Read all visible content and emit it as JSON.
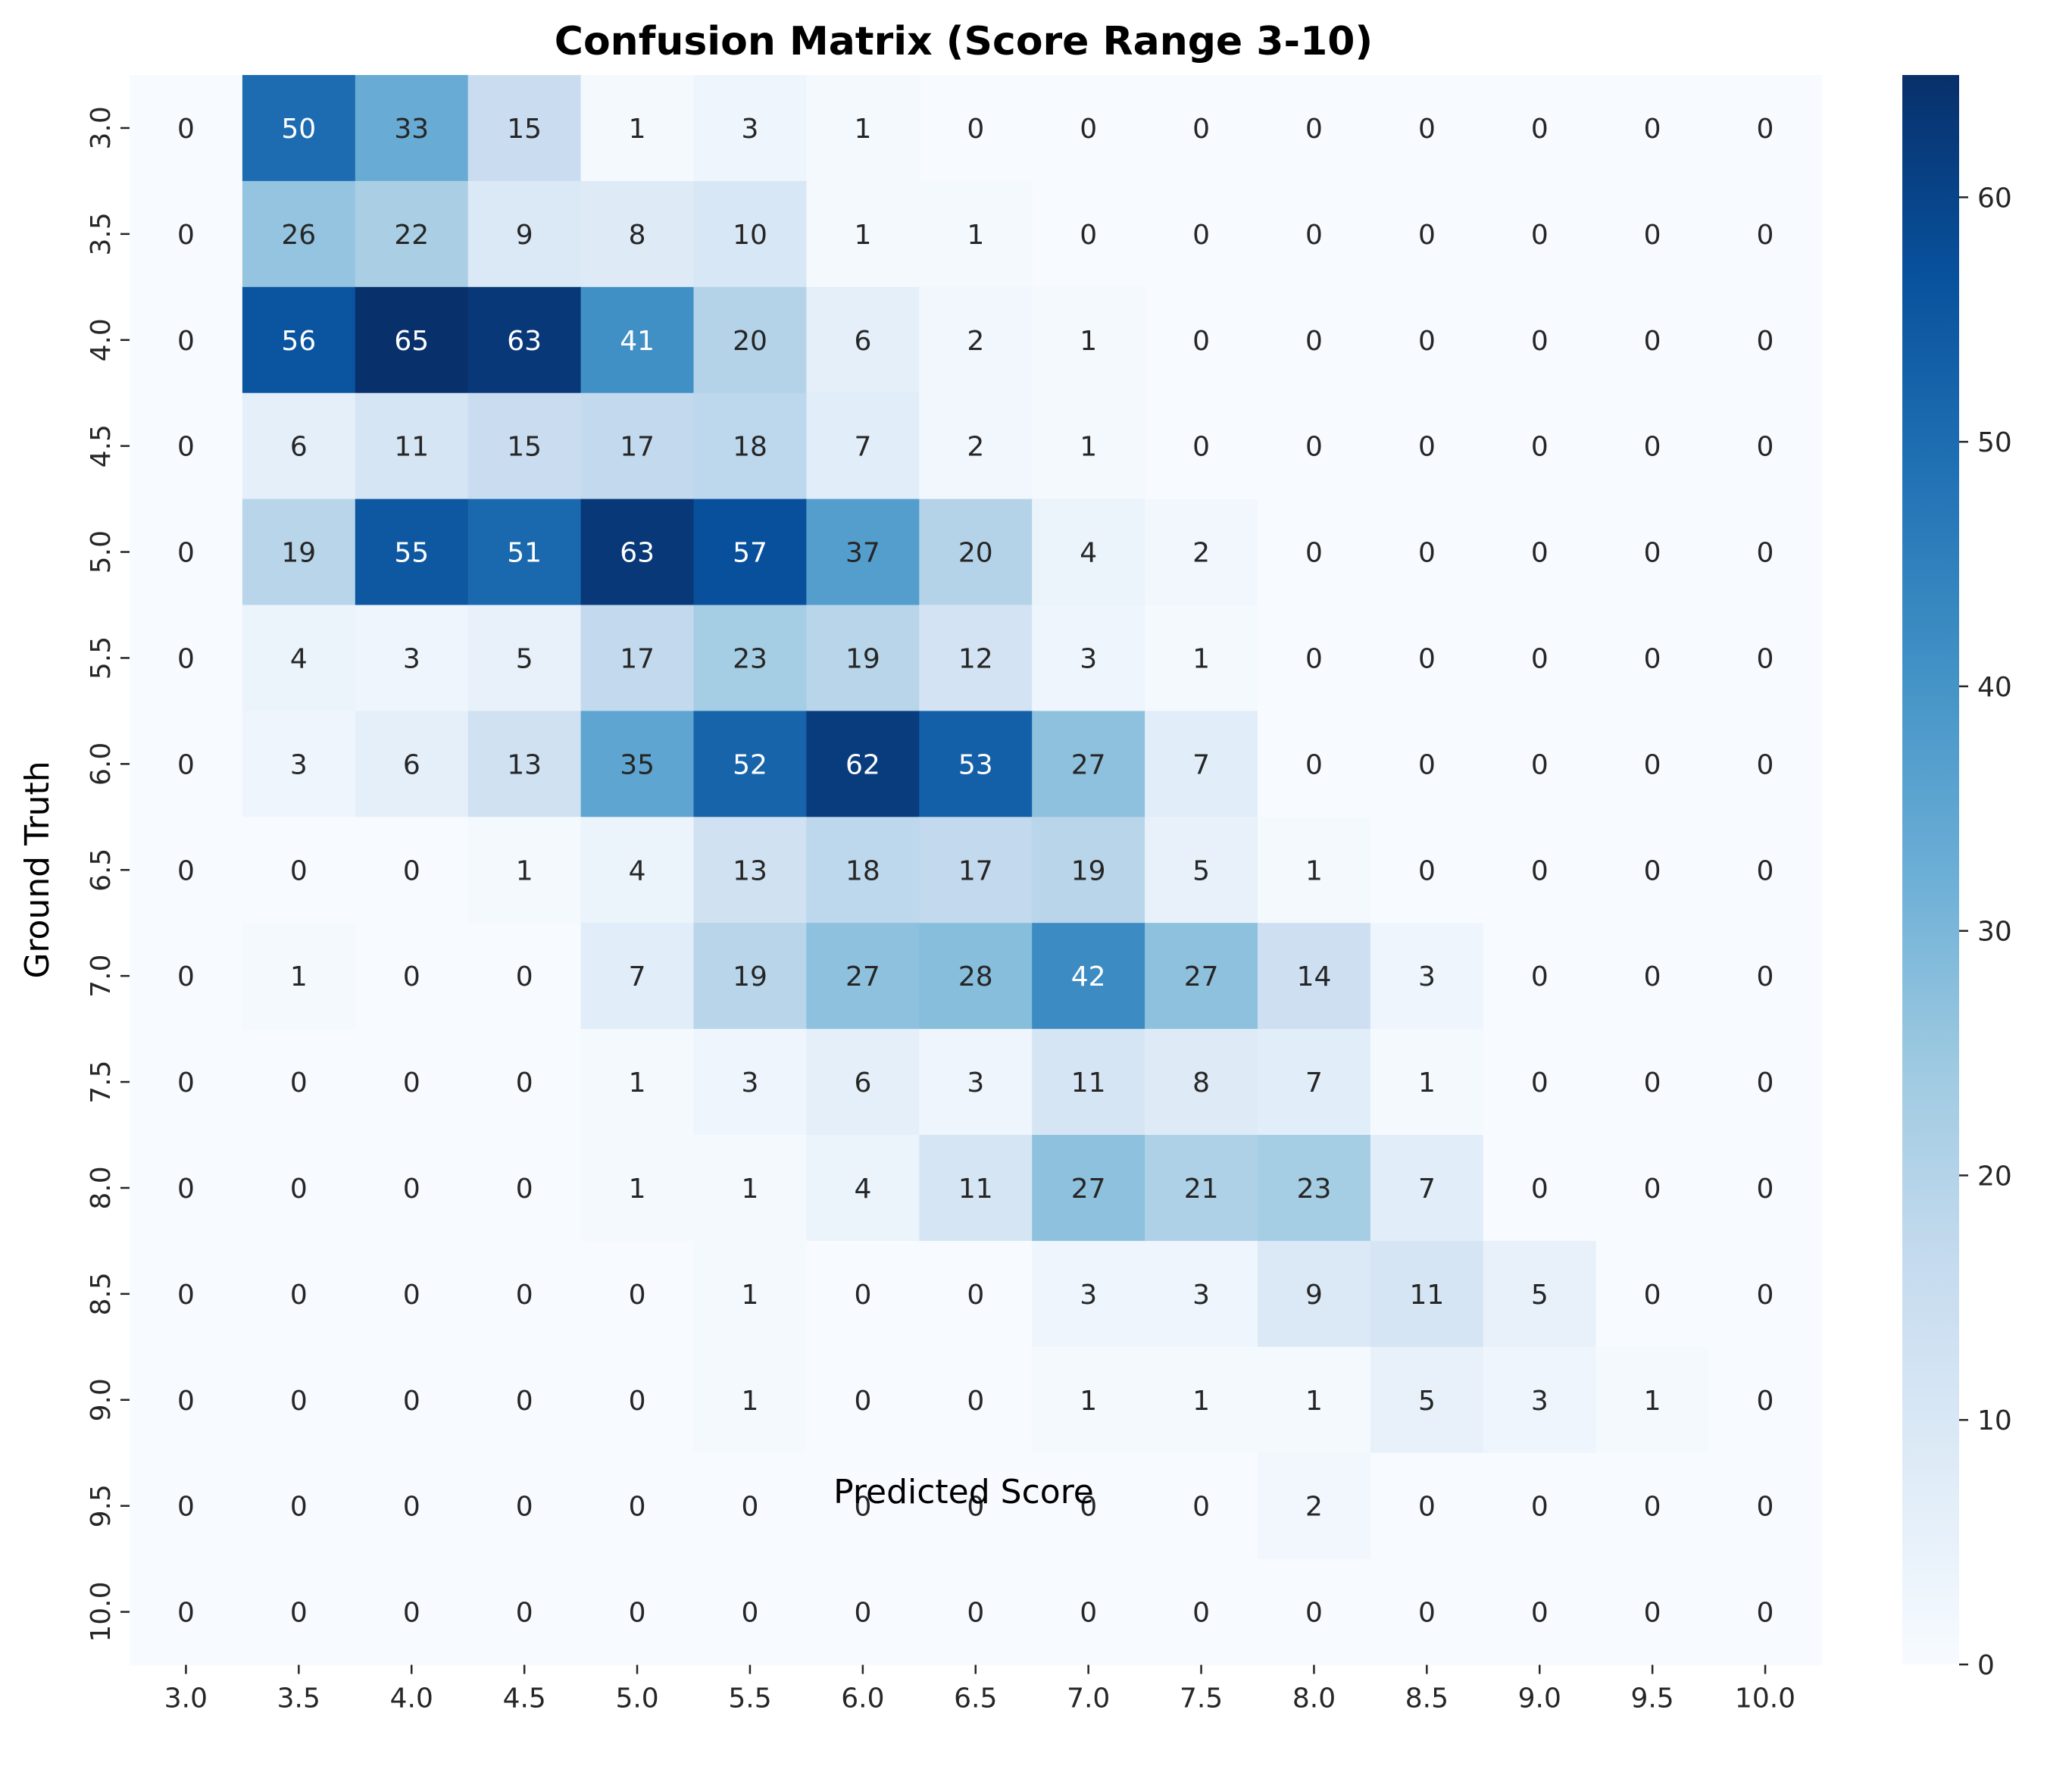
{
  "chart_data": {
    "type": "heatmap",
    "title": "Confusion Matrix (Score Range 3-10)",
    "xlabel": "Predicted Score",
    "ylabel": "Ground Truth",
    "x_categories": [
      "3.0",
      "3.5",
      "4.0",
      "4.5",
      "5.0",
      "5.5",
      "6.0",
      "6.5",
      "7.0",
      "7.5",
      "8.0",
      "8.5",
      "9.0",
      "9.5",
      "10.0"
    ],
    "y_categories": [
      "3.0",
      "3.5",
      "4.0",
      "4.5",
      "5.0",
      "5.5",
      "6.0",
      "6.5",
      "7.0",
      "7.5",
      "8.0",
      "8.5",
      "9.0",
      "9.5",
      "10.0"
    ],
    "values": [
      [
        0,
        50,
        33,
        15,
        1,
        3,
        1,
        0,
        0,
        0,
        0,
        0,
        0,
        0,
        0
      ],
      [
        0,
        26,
        22,
        9,
        8,
        10,
        1,
        1,
        0,
        0,
        0,
        0,
        0,
        0,
        0
      ],
      [
        0,
        56,
        65,
        63,
        41,
        20,
        6,
        2,
        1,
        0,
        0,
        0,
        0,
        0,
        0
      ],
      [
        0,
        6,
        11,
        15,
        17,
        18,
        7,
        2,
        1,
        0,
        0,
        0,
        0,
        0,
        0
      ],
      [
        0,
        19,
        55,
        51,
        63,
        57,
        37,
        20,
        4,
        2,
        0,
        0,
        0,
        0,
        0
      ],
      [
        0,
        4,
        3,
        5,
        17,
        23,
        19,
        12,
        3,
        1,
        0,
        0,
        0,
        0,
        0
      ],
      [
        0,
        3,
        6,
        13,
        35,
        52,
        62,
        53,
        27,
        7,
        0,
        0,
        0,
        0,
        0
      ],
      [
        0,
        0,
        0,
        1,
        4,
        13,
        18,
        17,
        19,
        5,
        1,
        0,
        0,
        0,
        0
      ],
      [
        0,
        1,
        0,
        0,
        7,
        19,
        27,
        28,
        42,
        27,
        14,
        3,
        0,
        0,
        0
      ],
      [
        0,
        0,
        0,
        0,
        1,
        3,
        6,
        3,
        11,
        8,
        7,
        1,
        0,
        0,
        0
      ],
      [
        0,
        0,
        0,
        0,
        1,
        1,
        4,
        11,
        27,
        21,
        23,
        7,
        0,
        0,
        0
      ],
      [
        0,
        0,
        0,
        0,
        0,
        1,
        0,
        0,
        3,
        3,
        9,
        11,
        5,
        0,
        0
      ],
      [
        0,
        0,
        0,
        0,
        0,
        1,
        0,
        0,
        1,
        1,
        1,
        5,
        3,
        1,
        0
      ],
      [
        0,
        0,
        0,
        0,
        0,
        0,
        0,
        0,
        0,
        0,
        2,
        0,
        0,
        0,
        0
      ],
      [
        0,
        0,
        0,
        0,
        0,
        0,
        0,
        0,
        0,
        0,
        0,
        0,
        0,
        0,
        0
      ]
    ],
    "colormap": "Blues",
    "colorbar": {
      "vmin": 0,
      "vmax": 65,
      "ticks": [
        0,
        10,
        20,
        30,
        40,
        50,
        60
      ]
    },
    "grid": false
  }
}
